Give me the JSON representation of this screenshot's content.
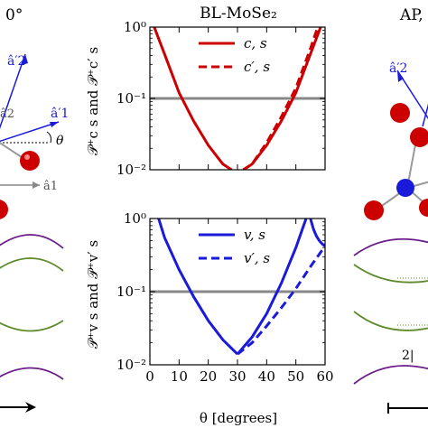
{
  "left_panel": {
    "heading": "0°",
    "vector_labels": [
      "â′2",
      "â2",
      "â′1",
      "θ",
      "â1"
    ]
  },
  "right_panel": {
    "heading": "AP,",
    "vector_labels": [
      "â′2"
    ],
    "fragment_label": "2|"
  },
  "chart_data": [
    {
      "type": "line",
      "title": "BL-MoSe₂",
      "xlabel": "",
      "ylabel": "𝒫⁺c s and 𝒫⁺c′ s",
      "xlim": [
        0,
        60
      ],
      "ylim": [
        0.01,
        1
      ],
      "yscale": "log",
      "yticks": [
        "10⁻²",
        "10⁻¹",
        "10⁰"
      ],
      "grid": false,
      "legend_position": "top-right",
      "reference_line": 0.1,
      "series": [
        {
          "name": "c, s",
          "color": "#cc0000",
          "style": "solid",
          "x": [
            1.5,
            5,
            10,
            15,
            20,
            25,
            28
          ],
          "y": [
            1.0,
            0.42,
            0.12,
            0.048,
            0.022,
            0.012,
            0.01
          ]
        },
        {
          "name": "c, s",
          "color": "#cc0000",
          "style": "solid",
          "x": [
            32,
            35,
            40,
            45,
            50,
            55,
            58.5
          ],
          "y": [
            0.01,
            0.012,
            0.022,
            0.048,
            0.12,
            0.42,
            1.0
          ]
        },
        {
          "name": "c′, s",
          "color": "#cc0000",
          "style": "dashed",
          "x": [
            32,
            35,
            40,
            45,
            50,
            55,
            57.5
          ],
          "y": [
            0.01,
            0.012,
            0.024,
            0.055,
            0.14,
            0.5,
            1.0
          ]
        }
      ],
      "legend": [
        "c, s",
        "c′, s"
      ]
    },
    {
      "type": "line",
      "title": "",
      "xlabel": "θ [degrees]",
      "ylabel": "𝒫⁺v s and 𝒫⁺v′ s",
      "xlim": [
        0,
        60
      ],
      "ylim": [
        0.01,
        1
      ],
      "yscale": "log",
      "xticks": [
        "0",
        "10",
        "20",
        "30",
        "40",
        "50",
        "60"
      ],
      "yticks": [
        "10⁻²",
        "10⁻¹",
        "10⁰"
      ],
      "grid": false,
      "legend_position": "top-right",
      "reference_line": 0.1,
      "series": [
        {
          "name": "v, s",
          "color": "#1a1adb",
          "style": "solid",
          "x": [
            3,
            5,
            10,
            15,
            20,
            25,
            30
          ],
          "y": [
            1.0,
            0.55,
            0.2,
            0.085,
            0.04,
            0.022,
            0.014
          ]
        },
        {
          "name": "v, s",
          "color": "#1a1adb",
          "style": "solid",
          "x": [
            30,
            35,
            40,
            45,
            50,
            53.5
          ],
          "y": [
            0.014,
            0.024,
            0.05,
            0.13,
            0.4,
            1.0
          ]
        },
        {
          "name": "v, s",
          "color": "#1a1adb",
          "style": "solid",
          "x": [
            55,
            56,
            57,
            58,
            59,
            60
          ],
          "y": [
            1.0,
            0.72,
            0.58,
            0.5,
            0.45,
            0.42
          ]
        },
        {
          "name": "v′, s",
          "color": "#1a1adb",
          "style": "dashed",
          "x": [
            30,
            35,
            40,
            45,
            50,
            55,
            60
          ],
          "y": [
            0.014,
            0.02,
            0.034,
            0.06,
            0.11,
            0.22,
            0.42
          ]
        }
      ],
      "legend": [
        "v, s",
        "v′, s"
      ]
    }
  ],
  "colors": {
    "red": "#cc0000",
    "blue": "#1a1adb",
    "gray": "#888888",
    "purple": "#6a1d8a",
    "green": "#5e8a2c"
  }
}
